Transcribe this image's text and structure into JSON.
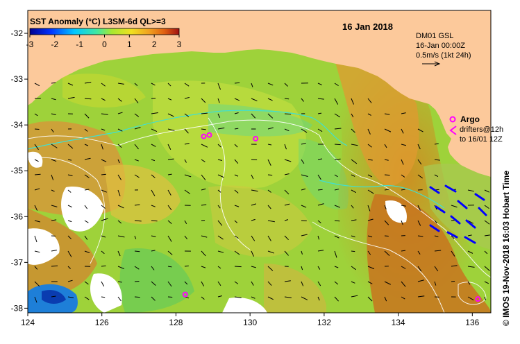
{
  "colorbar": {
    "title": "SST Anomaly (°C) L3SM-6d QL>=3",
    "ticks": [
      "-3",
      "-2",
      "-1",
      "0",
      "1",
      "2",
      "3"
    ],
    "range": [
      -3,
      3
    ]
  },
  "date_label": "16 Jan 2018",
  "info_box": {
    "line1": "DM01 GSL",
    "line2": "16-Jan 00:00Z",
    "line3": "0.5m/s (1kt 24h)"
  },
  "legend": {
    "argo_label": "Argo",
    "drifters_line1": "drifters@12h",
    "drifters_line2": "to 16/01 12Z"
  },
  "credit": "© IMOS 19-Nov-2018 16:03 Hobart Time",
  "axes": {
    "x_ticks": [
      "124",
      "126",
      "128",
      "130",
      "132",
      "134",
      "136"
    ],
    "y_ticks": [
      "-32",
      "-33",
      "-34",
      "-35",
      "-36",
      "-37",
      "-38"
    ],
    "lon_range": [
      124,
      136.5
    ],
    "lat_range": [
      -38.1,
      -31.5
    ]
  },
  "colors": {
    "land": "#fcc99b",
    "no_data": "#ffffff",
    "ocean_base": "#9ed23a",
    "argo_marker": "#ff00ff",
    "drifter_tracks": "#0000ff",
    "cold_patch": "#1e7fd8",
    "isobath": "#ffffff",
    "front_line": "#40e0d0"
  },
  "argo_floats": [
    {
      "lon": 128.75,
      "lat": -34.25
    },
    {
      "lon": 128.9,
      "lat": -34.22
    },
    {
      "lon": 130.15,
      "lat": -34.3
    },
    {
      "lon": 128.25,
      "lat": -37.7
    },
    {
      "lon": 136.15,
      "lat": -37.8
    }
  ]
}
